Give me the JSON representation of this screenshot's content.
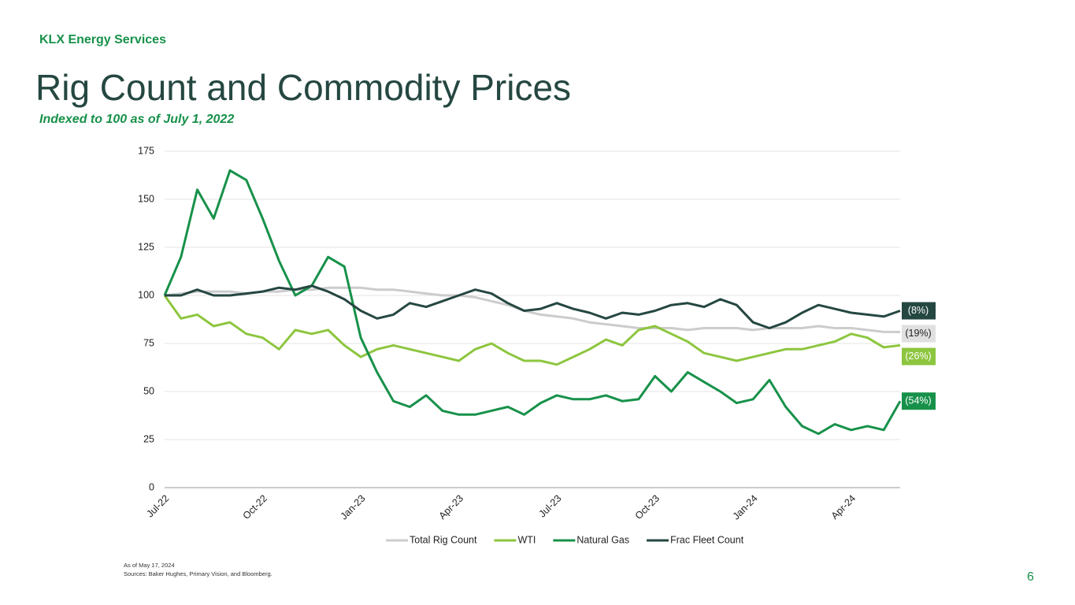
{
  "slide": {
    "company": "KLX Energy Services",
    "title": "Rig Count and Commodity Prices",
    "subtitle": "Indexed to 100 as of July 1, 2022",
    "notes": [
      "As of May 17, 2024",
      "Sources: Baker Hughes, Primary Vision, and Bloomberg."
    ],
    "page_number": 6
  },
  "chart_data": {
    "type": "line",
    "categories": [
      "Jul-22",
      null,
      null,
      null,
      null,
      null,
      "Oct-22",
      null,
      null,
      null,
      null,
      null,
      "Jan-23",
      null,
      null,
      null,
      null,
      null,
      "Apr-23",
      null,
      null,
      null,
      null,
      null,
      "Jul-23",
      null,
      null,
      null,
      null,
      null,
      "Oct-23",
      null,
      null,
      null,
      null,
      null,
      "Jan-24",
      null,
      null,
      null,
      null,
      null,
      "Apr-24",
      null,
      null,
      null
    ],
    "ylim": [
      0,
      175
    ],
    "yticks": [
      0,
      25,
      50,
      75,
      100,
      125,
      150,
      175
    ],
    "grid": true,
    "legend": "bottom",
    "series": [
      {
        "name": "Total Rig Count",
        "color": "#cccccc",
        "end_label": "(19%)",
        "values": [
          100,
          101,
          102,
          102,
          102,
          101,
          102,
          102,
          103,
          103,
          104,
          104,
          104,
          103,
          103,
          102,
          101,
          100,
          100,
          99,
          97,
          95,
          92,
          90,
          89,
          88,
          86,
          85,
          84,
          83,
          83,
          83,
          82,
          83,
          83,
          83,
          82,
          83,
          83,
          83,
          84,
          83,
          83,
          82,
          81,
          81
        ]
      },
      {
        "name": "WTI",
        "color": "#8dc63f",
        "end_label": "(26%)",
        "values": [
          100,
          88,
          90,
          84,
          86,
          80,
          78,
          72,
          82,
          80,
          82,
          74,
          68,
          72,
          74,
          72,
          70,
          68,
          66,
          72,
          75,
          70,
          66,
          66,
          64,
          68,
          72,
          77,
          74,
          82,
          84,
          80,
          76,
          70,
          68,
          66,
          68,
          70,
          72,
          72,
          74,
          76,
          80,
          78,
          73,
          74
        ]
      },
      {
        "name": "Natural Gas",
        "color": "#17914a",
        "end_label": "(54%)",
        "values": [
          100,
          120,
          155,
          140,
          165,
          160,
          140,
          118,
          100,
          105,
          120,
          115,
          78,
          60,
          45,
          42,
          48,
          40,
          38,
          38,
          40,
          42,
          38,
          44,
          48,
          46,
          46,
          48,
          45,
          46,
          58,
          50,
          60,
          55,
          50,
          44,
          46,
          56,
          42,
          32,
          28,
          33,
          30,
          32,
          30,
          45
        ]
      },
      {
        "name": "Frac Fleet Count",
        "color": "#254741",
        "end_label": "(8%)",
        "values": [
          100,
          100,
          103,
          100,
          100,
          101,
          102,
          104,
          103,
          105,
          102,
          98,
          92,
          88,
          90,
          96,
          94,
          97,
          100,
          103,
          101,
          96,
          92,
          93,
          96,
          93,
          91,
          88,
          91,
          90,
          92,
          95,
          96,
          94,
          98,
          95,
          86,
          83,
          86,
          91,
          95,
          93,
          91,
          90,
          89,
          92
        ]
      }
    ]
  }
}
